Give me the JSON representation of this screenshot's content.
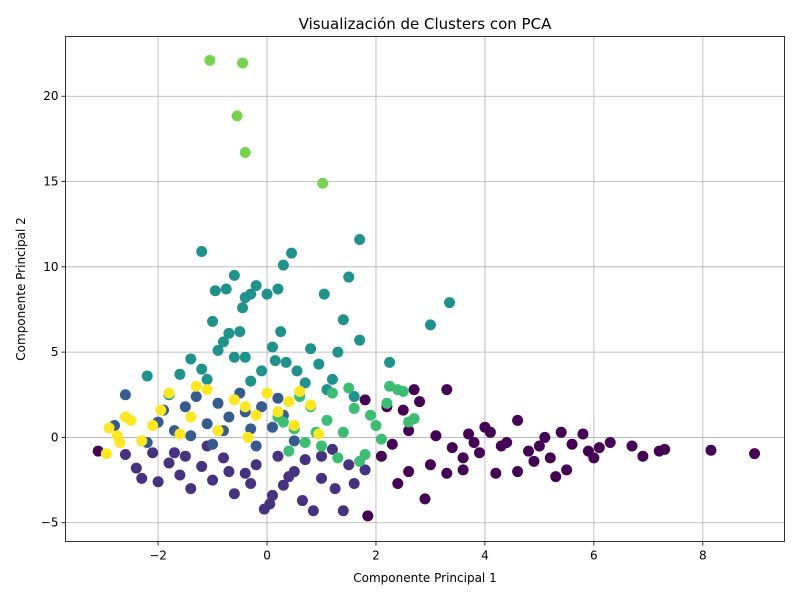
{
  "chart_data": {
    "type": "scatter",
    "title": "Visualización de Clusters con PCA",
    "xlabel": "Componente Principal 1",
    "ylabel": "Componente Principal 2",
    "xlim": [
      -3.7,
      9.5
    ],
    "ylim": [
      -6.1,
      23.5
    ],
    "x_ticks": [
      -2,
      0,
      2,
      4,
      6,
      8
    ],
    "y_ticks": [
      -5,
      0,
      5,
      10,
      15,
      20
    ],
    "x_tick_labels": [
      "−2",
      "0",
      "2",
      "4",
      "6",
      "8"
    ],
    "y_tick_labels": [
      "−5",
      "0",
      "5",
      "10",
      "15",
      "20"
    ],
    "grid": true,
    "colormap": "viridis",
    "clusters": [
      {
        "color": "#440154",
        "points": [
          [
            -3.1,
            -0.8
          ],
          [
            1.8,
            2.2
          ],
          [
            2.2,
            1.8
          ],
          [
            2.5,
            1.6
          ],
          [
            2.7,
            2.8
          ],
          [
            2.8,
            2.1
          ],
          [
            3.3,
            2.8
          ],
          [
            2.9,
            -3.6
          ],
          [
            1.85,
            -4.6
          ],
          [
            2.6,
            -2.0
          ],
          [
            3.0,
            -1.6
          ],
          [
            3.3,
            -2.1
          ],
          [
            3.6,
            -1.9
          ],
          [
            3.8,
            -0.3
          ],
          [
            4.0,
            0.6
          ],
          [
            4.2,
            -2.1
          ],
          [
            4.4,
            -0.3
          ],
          [
            4.6,
            1.0
          ],
          [
            4.6,
            -2.0
          ],
          [
            4.8,
            -0.8
          ],
          [
            5.0,
            -0.5
          ],
          [
            5.2,
            -1.2
          ],
          [
            5.3,
            -2.3
          ],
          [
            5.4,
            0.3
          ],
          [
            5.5,
            -1.9
          ],
          [
            5.6,
            -0.4
          ],
          [
            5.8,
            0.2
          ],
          [
            5.9,
            -0.8
          ],
          [
            6.0,
            -1.2
          ],
          [
            6.1,
            -0.6
          ],
          [
            6.3,
            -0.3
          ],
          [
            6.7,
            -0.5
          ],
          [
            6.9,
            -1.1
          ],
          [
            7.2,
            -0.8
          ],
          [
            7.3,
            -0.7
          ],
          [
            8.15,
            -0.75
          ],
          [
            8.95,
            -0.95
          ],
          [
            2.3,
            -0.4
          ],
          [
            2.6,
            0.4
          ],
          [
            3.1,
            0.1
          ],
          [
            3.4,
            -0.6
          ],
          [
            3.7,
            0.2
          ],
          [
            3.9,
            -0.9
          ],
          [
            4.1,
            0.3
          ],
          [
            4.3,
            -0.5
          ],
          [
            2.1,
            -1.1
          ],
          [
            2.4,
            -2.7
          ],
          [
            3.6,
            -1.2
          ],
          [
            4.9,
            -1.4
          ],
          [
            5.1,
            0.0
          ]
        ]
      },
      {
        "color": "#46327e",
        "points": [
          [
            -2.6,
            -1.0
          ],
          [
            -2.4,
            -1.8
          ],
          [
            -2.3,
            -2.4
          ],
          [
            -2.0,
            -2.6
          ],
          [
            -1.8,
            -1.5
          ],
          [
            -1.6,
            -2.2
          ],
          [
            -1.4,
            -3.0
          ],
          [
            -1.2,
            -1.7
          ],
          [
            -1.0,
            -2.5
          ],
          [
            -0.8,
            -1.2
          ],
          [
            -0.6,
            -3.3
          ],
          [
            -0.4,
            -2.1
          ],
          [
            -0.2,
            -1.6
          ],
          [
            -0.05,
            -4.2
          ],
          [
            0.05,
            -3.9
          ],
          [
            0.1,
            -3.4
          ],
          [
            0.3,
            -2.8
          ],
          [
            0.5,
            -2.0
          ],
          [
            0.65,
            -3.7
          ],
          [
            0.85,
            -4.3
          ],
          [
            1.0,
            -2.4
          ],
          [
            1.25,
            -3.0
          ],
          [
            1.4,
            -4.3
          ],
          [
            1.6,
            -2.7
          ],
          [
            1.8,
            -1.9
          ],
          [
            -1.7,
            -0.9
          ],
          [
            -1.1,
            -0.5
          ],
          [
            -0.7,
            -2.0
          ],
          [
            0.2,
            -1.1
          ],
          [
            0.7,
            -1.3
          ],
          [
            1.2,
            -0.7
          ],
          [
            -0.3,
            -2.7
          ],
          [
            -1.5,
            -1.1
          ],
          [
            -2.1,
            -0.9
          ],
          [
            0.4,
            -2.3
          ],
          [
            1.0,
            -1.1
          ],
          [
            1.5,
            -1.6
          ]
        ]
      },
      {
        "color": "#365c8d",
        "points": [
          [
            -2.8,
            0.7
          ],
          [
            -2.6,
            2.5
          ],
          [
            -2.2,
            -0.3
          ],
          [
            -1.9,
            1.6
          ],
          [
            -1.7,
            0.4
          ],
          [
            -1.5,
            1.8
          ],
          [
            -1.3,
            2.4
          ],
          [
            -1.1,
            0.8
          ],
          [
            -0.9,
            2.0
          ],
          [
            -0.7,
            1.2
          ],
          [
            -0.5,
            2.6
          ],
          [
            -0.3,
            0.5
          ],
          [
            -0.1,
            1.8
          ],
          [
            0.1,
            0.6
          ],
          [
            0.3,
            1.3
          ],
          [
            0.5,
            -0.2
          ],
          [
            -1.4,
            0.1
          ],
          [
            -0.8,
            0.4
          ],
          [
            -0.2,
            -0.5
          ],
          [
            -2.0,
            0.9
          ],
          [
            -1.0,
            -0.4
          ],
          [
            -0.4,
            1.5
          ],
          [
            0.2,
            2.3
          ]
        ]
      },
      {
        "color": "#21918c",
        "points": [
          [
            -1.2,
            10.9
          ],
          [
            -0.6,
            9.5
          ],
          [
            -0.95,
            8.6
          ],
          [
            -0.75,
            8.7
          ],
          [
            -0.4,
            8.2
          ],
          [
            -0.2,
            8.9
          ],
          [
            0.0,
            8.4
          ],
          [
            0.2,
            8.7
          ],
          [
            0.3,
            10.1
          ],
          [
            0.45,
            10.8
          ],
          [
            1.05,
            8.4
          ],
          [
            1.5,
            9.4
          ],
          [
            1.7,
            11.6
          ],
          [
            -0.5,
            6.2
          ],
          [
            -0.45,
            7.6
          ],
          [
            -0.3,
            8.4
          ],
          [
            -1.0,
            6.8
          ],
          [
            -0.7,
            6.1
          ],
          [
            0.25,
            6.2
          ],
          [
            1.4,
            6.9
          ],
          [
            3.35,
            7.9
          ],
          [
            3.0,
            6.6
          ],
          [
            2.25,
            4.4
          ],
          [
            1.7,
            5.7
          ],
          [
            1.3,
            5.0
          ],
          [
            0.8,
            5.2
          ],
          [
            0.1,
            5.3
          ],
          [
            -0.4,
            4.7
          ],
          [
            -0.9,
            5.1
          ],
          [
            -1.4,
            4.6
          ],
          [
            -2.2,
            3.6
          ],
          [
            -1.6,
            3.7
          ],
          [
            -1.1,
            3.4
          ],
          [
            -0.6,
            4.7
          ],
          [
            0.15,
            4.5
          ],
          [
            0.55,
            3.9
          ],
          [
            0.95,
            4.3
          ],
          [
            1.2,
            3.4
          ],
          [
            -0.1,
            3.9
          ],
          [
            -0.8,
            5.6
          ],
          [
            -1.2,
            4.0
          ],
          [
            0.35,
            4.4
          ],
          [
            -0.3,
            3.3
          ],
          [
            1.6,
            2.4
          ],
          [
            1.1,
            2.8
          ],
          [
            -1.8,
            2.5
          ],
          [
            0.7,
            3.2
          ]
        ]
      },
      {
        "color": "#3dbc74",
        "points": [
          [
            0.2,
            1.2
          ],
          [
            0.5,
            0.5
          ],
          [
            0.8,
            1.8
          ],
          [
            1.0,
            -0.5
          ],
          [
            1.2,
            2.6
          ],
          [
            1.4,
            0.3
          ],
          [
            1.6,
            1.7
          ],
          [
            1.8,
            -1.0
          ],
          [
            2.0,
            0.7
          ],
          [
            2.2,
            2.0
          ],
          [
            2.25,
            3.0
          ],
          [
            2.4,
            2.8
          ],
          [
            2.5,
            2.7
          ],
          [
            2.6,
            0.9
          ],
          [
            2.7,
            1.1
          ],
          [
            0.4,
            -0.8
          ],
          [
            0.9,
            0.3
          ],
          [
            1.3,
            -1.2
          ],
          [
            1.7,
            -1.4
          ],
          [
            0.6,
            2.4
          ],
          [
            1.9,
            1.3
          ],
          [
            1.1,
            1.0
          ],
          [
            0.3,
            0.9
          ],
          [
            1.5,
            2.9
          ],
          [
            0.7,
            -0.3
          ],
          [
            2.1,
            -0.1
          ]
        ]
      },
      {
        "color": "#7ad151",
        "points": [
          [
            -1.05,
            22.1
          ],
          [
            -0.45,
            21.95
          ],
          [
            -0.55,
            18.85
          ],
          [
            -0.4,
            16.7
          ],
          [
            1.02,
            14.9
          ]
        ]
      },
      {
        "color": "#fde725",
        "points": [
          [
            -2.95,
            -0.95
          ],
          [
            -2.9,
            0.55
          ],
          [
            -2.75,
            0.1
          ],
          [
            -2.7,
            -0.3
          ],
          [
            -2.6,
            1.2
          ],
          [
            -2.5,
            1.0
          ],
          [
            -2.3,
            -0.2
          ],
          [
            -2.1,
            0.7
          ],
          [
            -1.95,
            1.6
          ],
          [
            -1.8,
            2.6
          ],
          [
            -1.6,
            0.2
          ],
          [
            -1.4,
            1.2
          ],
          [
            -1.1,
            2.8
          ],
          [
            -0.9,
            0.4
          ],
          [
            -0.6,
            2.2
          ],
          [
            -0.35,
            0.0
          ],
          [
            -0.2,
            1.3
          ],
          [
            0.0,
            2.6
          ],
          [
            0.2,
            1.5
          ],
          [
            0.4,
            2.1
          ],
          [
            0.6,
            2.7
          ],
          [
            0.8,
            1.9
          ],
          [
            0.95,
            0.2
          ],
          [
            0.5,
            0.7
          ],
          [
            -0.4,
            1.8
          ],
          [
            -1.3,
            3.0
          ]
        ]
      }
    ]
  }
}
